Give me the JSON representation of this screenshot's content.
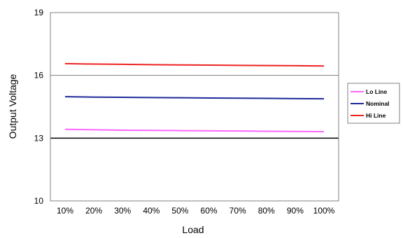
{
  "chart_data": {
    "type": "line",
    "title": "",
    "xlabel": "Load",
    "ylabel": "Output Voltage",
    "categories": [
      "10%",
      "20%",
      "30%",
      "40%",
      "50%",
      "60%",
      "70%",
      "80%",
      "90%",
      "100%"
    ],
    "ylim": [
      10,
      19
    ],
    "yticks": [
      "10",
      "13",
      "16",
      "19"
    ],
    "grid": "horizontal",
    "legend_position": "right",
    "series": [
      {
        "name": "Lo Line",
        "color": "#ff66ff",
        "values": [
          13.42,
          13.4,
          13.38,
          13.37,
          13.36,
          13.35,
          13.34,
          13.33,
          13.32,
          13.31
        ]
      },
      {
        "name": "Nominal",
        "color": "#1f2a9a",
        "values": [
          14.98,
          14.96,
          14.95,
          14.94,
          14.93,
          14.92,
          14.91,
          14.9,
          14.89,
          14.88
        ]
      },
      {
        "name": "Hi Line",
        "color": "#ee2222",
        "values": [
          16.56,
          16.54,
          16.53,
          16.51,
          16.5,
          16.49,
          16.48,
          16.47,
          16.46,
          16.45
        ]
      }
    ]
  }
}
